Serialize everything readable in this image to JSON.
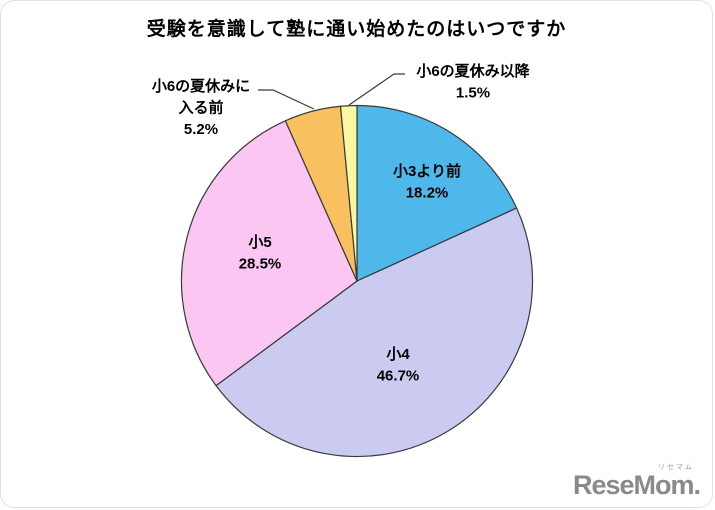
{
  "chart_data": {
    "type": "pie",
    "title": "受験を意識して塾に通い始めたのはいつですか",
    "legend_position": "none",
    "start_angle_deg": 0,
    "direction": "clockwise",
    "outline_color": "#3a3a3a",
    "label_color": "#000000",
    "slices": [
      {
        "label": "小3より前",
        "value": 18.2,
        "pct_text": "18.2%",
        "color": "#4FB8EA",
        "placement": "inside",
        "label_lines": [
          "小3より前"
        ]
      },
      {
        "label": "小4",
        "value": 46.7,
        "pct_text": "46.7%",
        "color": "#CBCBF2",
        "placement": "inside",
        "label_lines": [
          "小4"
        ]
      },
      {
        "label": "小5",
        "value": 28.5,
        "pct_text": "28.5%",
        "color": "#FBC7F2",
        "placement": "inside",
        "label_lines": [
          "小5"
        ]
      },
      {
        "label": "小6の夏休みに入る前",
        "value": 5.2,
        "pct_text": "5.2%",
        "color": "#F8C05F",
        "placement": "outside",
        "label_lines": [
          "小6の夏休みに",
          "入る前"
        ]
      },
      {
        "label": "小6の夏休み以降",
        "value": 1.5,
        "pct_text": "1.5%",
        "color": "#FAF7A3",
        "placement": "outside",
        "label_lines": [
          "小6の夏休み以降"
        ]
      }
    ]
  },
  "logo": {
    "ruby": "リセマム",
    "wordmark": "ReseMom."
  }
}
